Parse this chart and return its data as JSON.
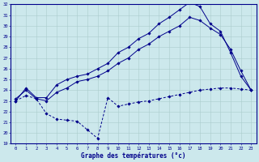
{
  "xlabel": "Graphe des températures (°c)",
  "ylim": [
    19,
    32
  ],
  "xlim": [
    -0.5,
    23.5
  ],
  "yticks": [
    19,
    20,
    21,
    22,
    23,
    24,
    25,
    26,
    27,
    28,
    29,
    30,
    31,
    32
  ],
  "xticks": [
    0,
    1,
    2,
    3,
    4,
    5,
    6,
    7,
    8,
    9,
    10,
    11,
    12,
    13,
    14,
    15,
    16,
    17,
    18,
    19,
    20,
    21,
    22,
    23
  ],
  "bg_color": "#cce8ec",
  "line_color": "#00008b",
  "grid_color": "#aacccc",
  "line1_y": [
    23.0,
    24.2,
    23.3,
    23.3,
    24.5,
    25.0,
    25.3,
    25.5,
    26.0,
    26.5,
    27.5,
    28.0,
    28.8,
    29.3,
    30.2,
    30.8,
    31.5,
    32.2,
    31.8,
    30.2,
    29.5,
    27.5,
    25.3,
    24.0
  ],
  "line2_y": [
    23.2,
    24.0,
    23.2,
    23.0,
    23.8,
    24.2,
    24.8,
    25.0,
    25.3,
    25.8,
    26.5,
    27.0,
    27.8,
    28.3,
    29.0,
    29.5,
    30.0,
    30.8,
    30.5,
    29.8,
    29.2,
    27.8,
    25.8,
    24.0
  ],
  "line3_y": [
    23.0,
    23.5,
    23.2,
    21.8,
    21.3,
    21.2,
    21.1,
    20.3,
    19.5,
    23.3,
    22.5,
    22.7,
    22.9,
    23.0,
    23.2,
    23.4,
    23.6,
    23.8,
    24.0,
    24.1,
    24.2,
    24.2,
    24.1,
    24.0
  ]
}
